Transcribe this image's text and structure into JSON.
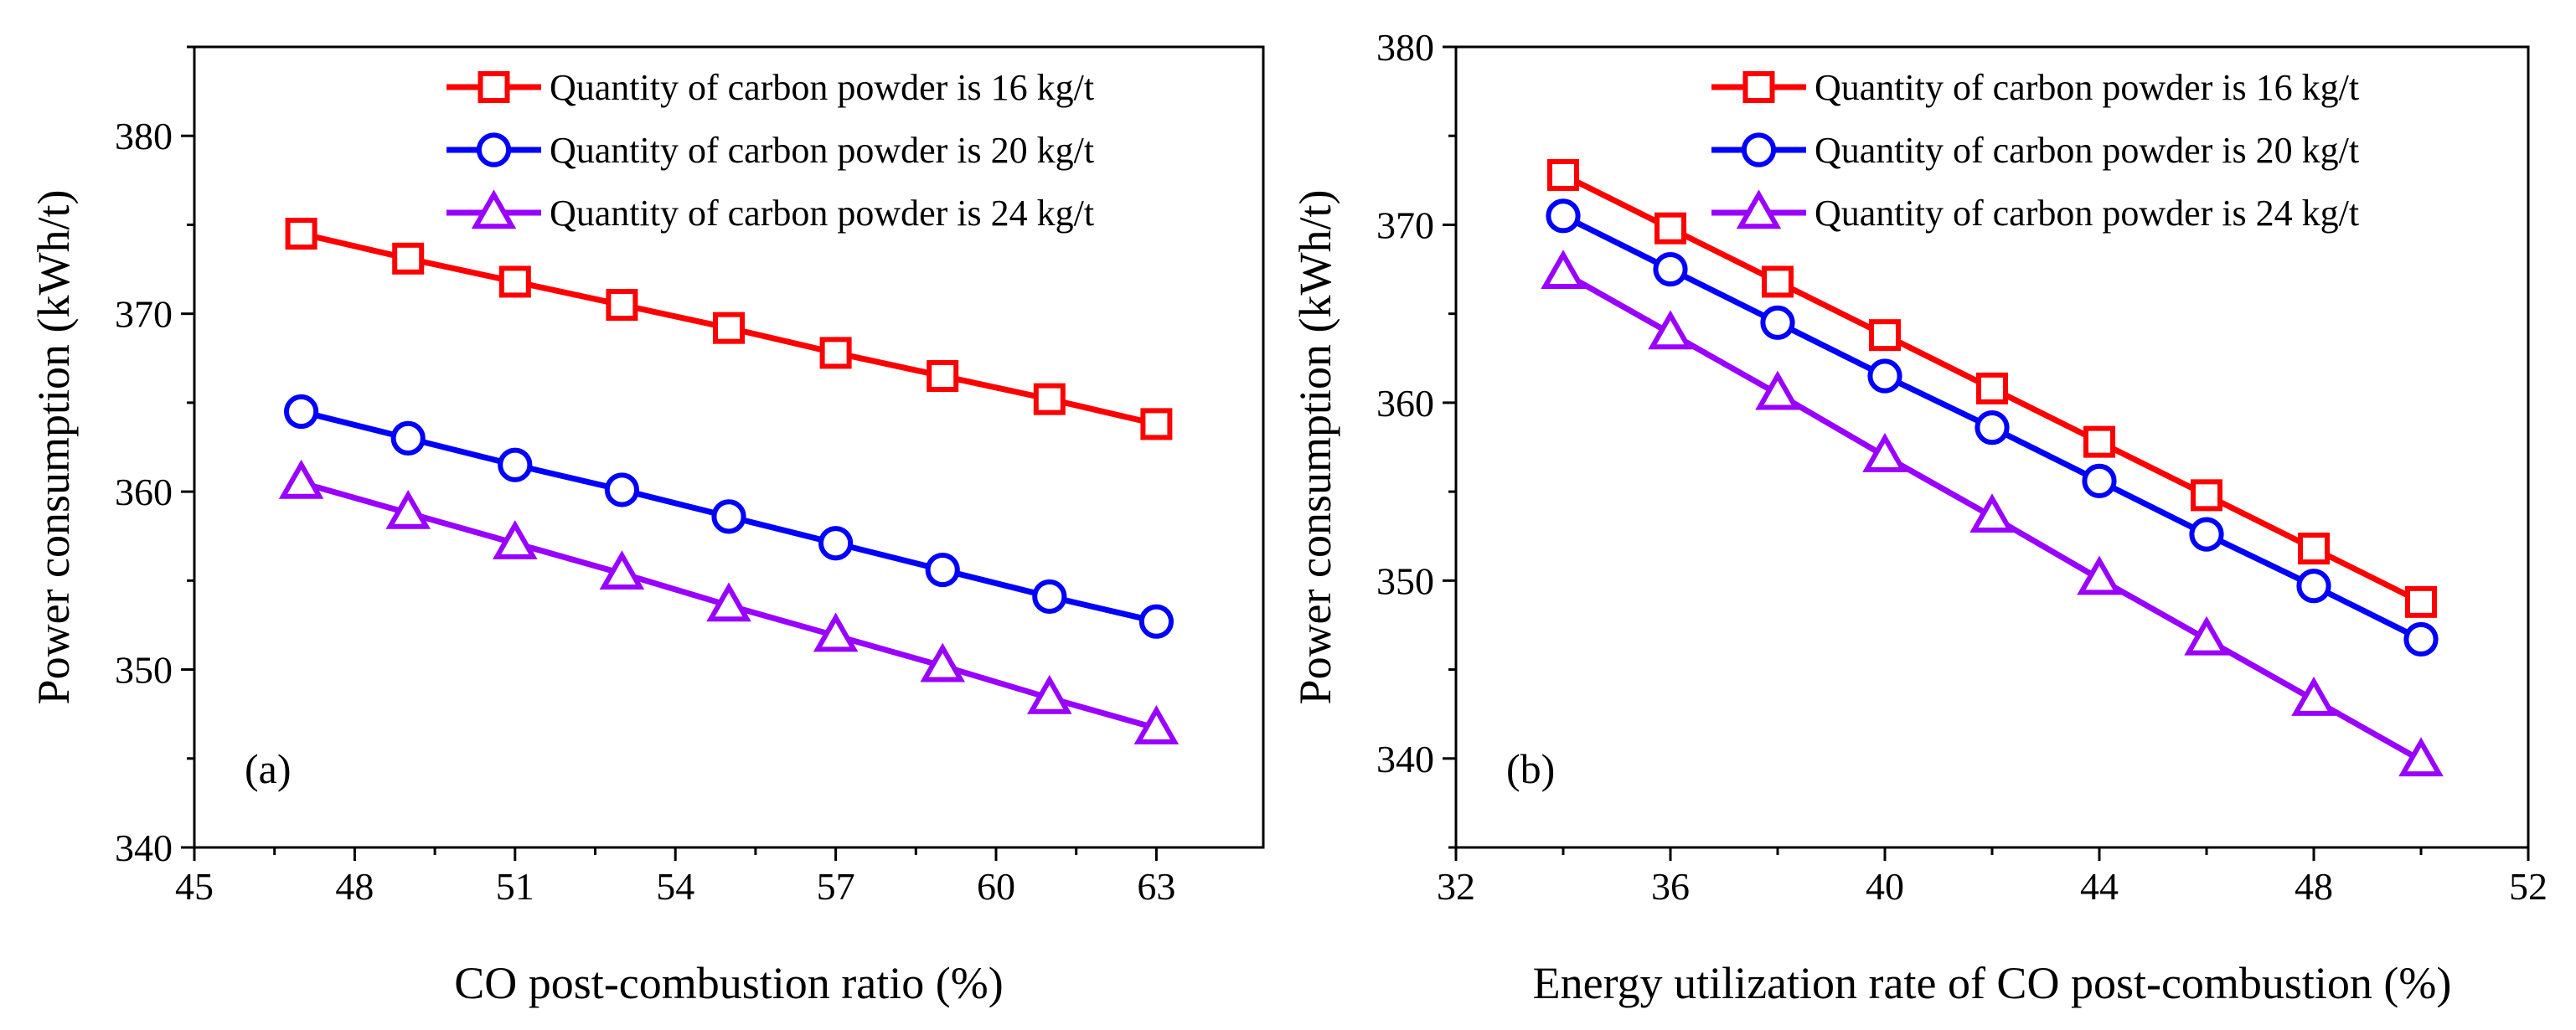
{
  "chart_data": [
    {
      "type": "line",
      "panel_label": "(a)",
      "xlabel": "CO post-combustion ratio (%)",
      "ylabel": "Power consumption (kWh/t)",
      "xlim": [
        45,
        65
      ],
      "ylim": [
        340,
        385
      ],
      "xticks": [
        45,
        48,
        51,
        54,
        57,
        60,
        63
      ],
      "yticks": [
        340,
        350,
        360,
        370,
        380
      ],
      "x": [
        47,
        49,
        51,
        53,
        55,
        57,
        59,
        61,
        63
      ],
      "series": [
        {
          "name": "Quantity of carbon powder is 16 kg/t",
          "marker": "square",
          "color": "#ff0000",
          "values": [
            374.5,
            373.1,
            371.8,
            370.5,
            369.2,
            367.8,
            366.5,
            365.2,
            363.8
          ]
        },
        {
          "name": "Quantity of carbon powder is 20 kg/t",
          "marker": "circle",
          "color": "#0000ff",
          "values": [
            364.5,
            363.0,
            361.5,
            360.1,
            358.6,
            357.1,
            355.6,
            354.1,
            352.7
          ]
        },
        {
          "name": "Quantity of carbon powder is 24 kg/t",
          "marker": "triangle",
          "color": "#9900ff",
          "values": [
            360.5,
            358.8,
            357.1,
            355.4,
            353.6,
            351.9,
            350.2,
            348.4,
            346.7
          ]
        }
      ]
    },
    {
      "type": "line",
      "panel_label": "(b)",
      "xlabel": "Energy utilization rate of CO post-combustion (%)",
      "ylabel": "Power consumption (kWh/t)",
      "xlim": [
        32,
        52
      ],
      "ylim": [
        335,
        380
      ],
      "xticks": [
        32,
        36,
        40,
        44,
        48,
        52
      ],
      "yticks": [
        340,
        350,
        360,
        370,
        380
      ],
      "x": [
        34,
        36,
        38,
        40,
        42,
        44,
        46,
        48,
        50
      ],
      "series": [
        {
          "name": "Quantity of carbon powder is 16 kg/t",
          "marker": "square",
          "color": "#ff0000",
          "values": [
            372.8,
            369.8,
            366.8,
            363.8,
            360.8,
            357.8,
            354.8,
            351.8,
            348.8
          ]
        },
        {
          "name": "Quantity of carbon powder is 20 kg/t",
          "marker": "circle",
          "color": "#0000ff",
          "values": [
            370.5,
            367.5,
            364.5,
            361.5,
            358.6,
            355.6,
            352.6,
            349.7,
            346.7
          ]
        },
        {
          "name": "Quantity of carbon powder is 24 kg/t",
          "marker": "triangle",
          "color": "#9900ff",
          "values": [
            367.3,
            363.9,
            360.5,
            357.0,
            353.6,
            350.1,
            346.7,
            343.3,
            339.9
          ]
        }
      ]
    }
  ]
}
